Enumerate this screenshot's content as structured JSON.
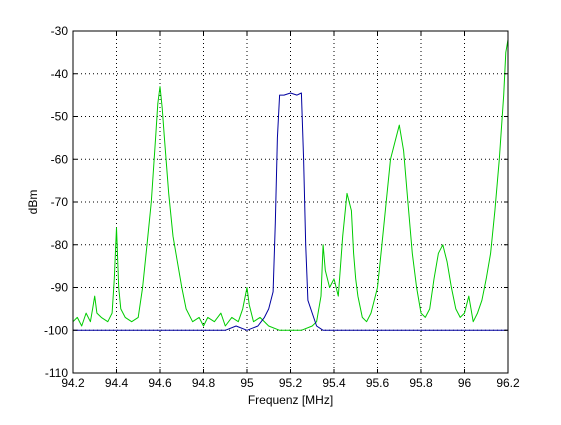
{
  "chart_data": {
    "type": "line",
    "title": "",
    "xlabel": "Frequenz [MHz]",
    "ylabel": "dBm",
    "xlim": [
      94.2,
      96.2
    ],
    "ylim": [
      -110,
      -30
    ],
    "xticks": [
      94.2,
      94.4,
      94.6,
      94.8,
      95,
      95.2,
      95.4,
      95.6,
      95.8,
      96,
      96.2
    ],
    "xtick_labels": [
      "94.2",
      "94.4",
      "94.6",
      "94.8",
      "95",
      "95.2",
      "95.4",
      "95.6",
      "95.8",
      "96",
      "96.2"
    ],
    "yticks": [
      -110,
      -100,
      -90,
      -80,
      -70,
      -60,
      -50,
      -40,
      -30
    ],
    "ytick_labels": [
      "-110",
      "-100",
      "-90",
      "-80",
      "-70",
      "-60",
      "-50",
      "-40",
      "-30"
    ],
    "grid": true,
    "grid_style": "dotted",
    "legend": "none",
    "series": [
      {
        "color": "#00cc00",
        "x": [
          94.2,
          94.22,
          94.24,
          94.26,
          94.28,
          94.29,
          94.3,
          94.31,
          94.33,
          94.36,
          94.38,
          94.39,
          94.4,
          94.41,
          94.42,
          94.44,
          94.47,
          94.5,
          94.52,
          94.54,
          94.56,
          94.58,
          94.59,
          94.6,
          94.61,
          94.62,
          94.64,
          94.66,
          94.68,
          94.7,
          94.72,
          94.75,
          94.78,
          94.8,
          94.82,
          94.85,
          94.88,
          94.9,
          94.93,
          94.96,
          94.98,
          95.0,
          95.01,
          95.03,
          95.06,
          95.1,
          95.15,
          95.2,
          95.25,
          95.3,
          95.32,
          95.34,
          95.35,
          95.36,
          95.38,
          95.4,
          95.42,
          95.44,
          95.46,
          95.48,
          95.49,
          95.5,
          95.51,
          95.53,
          95.55,
          95.57,
          95.6,
          95.62,
          95.64,
          95.66,
          95.68,
          95.7,
          95.72,
          95.74,
          95.76,
          95.78,
          95.8,
          95.82,
          95.84,
          95.86,
          95.88,
          95.9,
          95.92,
          95.94,
          95.96,
          95.98,
          96.0,
          96.02,
          96.04,
          96.06,
          96.08,
          96.1,
          96.12,
          96.14,
          96.16,
          96.18,
          96.19,
          96.2
        ],
        "y": [
          -98,
          -97,
          -99,
          -96,
          -98,
          -95,
          -92,
          -96,
          -97,
          -98,
          -96,
          -88,
          -76,
          -90,
          -95,
          -97,
          -98,
          -97,
          -90,
          -80,
          -70,
          -55,
          -47,
          -43,
          -48,
          -55,
          -68,
          -78,
          -84,
          -90,
          -95,
          -98,
          -97,
          -99,
          -97,
          -98,
          -96,
          -99,
          -97,
          -98,
          -95,
          -90,
          -94,
          -98,
          -97,
          -99,
          -100,
          -100,
          -100,
          -99,
          -98,
          -92,
          -80,
          -86,
          -90,
          -88,
          -92,
          -78,
          -68,
          -72,
          -82,
          -88,
          -92,
          -97,
          -98,
          -96,
          -90,
          -80,
          -70,
          -60,
          -56,
          -52,
          -58,
          -70,
          -82,
          -90,
          -96,
          -97,
          -95,
          -88,
          -82,
          -80,
          -84,
          -90,
          -95,
          -97,
          -96,
          -92,
          -98,
          -96,
          -93,
          -88,
          -82,
          -72,
          -60,
          -45,
          -35,
          -32
        ]
      },
      {
        "color": "#0000a0",
        "x": [
          94.2,
          94.3,
          94.4,
          94.5,
          94.6,
          94.7,
          94.8,
          94.9,
          94.95,
          95.0,
          95.05,
          95.08,
          95.1,
          95.12,
          95.13,
          95.14,
          95.15,
          95.17,
          95.2,
          95.23,
          95.25,
          95.26,
          95.27,
          95.28,
          95.3,
          95.32,
          95.35,
          95.4,
          95.5,
          95.6,
          95.7,
          95.8,
          95.9,
          96.0,
          96.1,
          96.2
        ],
        "y": [
          -100,
          -100,
          -100,
          -100,
          -100,
          -100,
          -100,
          -100,
          -99,
          -100,
          -99,
          -97,
          -95,
          -91,
          -75,
          -55,
          -45,
          -45,
          -44.5,
          -45,
          -44.5,
          -60,
          -80,
          -93,
          -96,
          -99,
          -100,
          -100,
          -100,
          -100,
          -100,
          -100,
          -100,
          -100,
          -100,
          -100
        ]
      }
    ]
  }
}
